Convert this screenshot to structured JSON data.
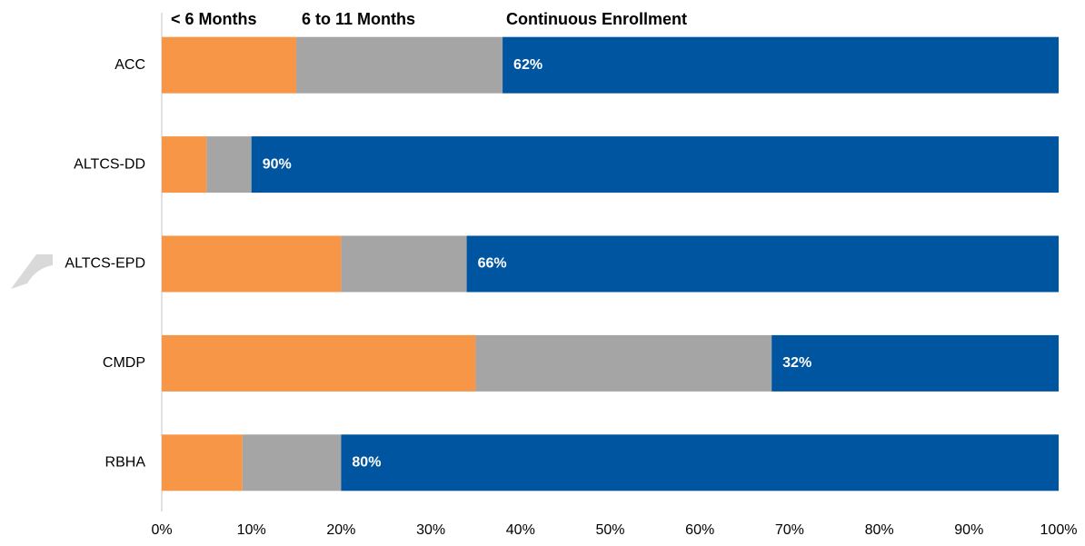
{
  "chart_data": {
    "type": "stacked-bar-horizontal",
    "categories": [
      "ACC",
      "ALTCS-DD",
      "ALTCS-EPD",
      "CMDP",
      "RBHA"
    ],
    "series": [
      {
        "name": "< 6 Months",
        "color": "#f79646",
        "values": [
          15,
          5,
          20,
          35,
          9
        ]
      },
      {
        "name": "6 to 11 Months",
        "color": "#a5a5a5",
        "values": [
          23,
          5,
          14,
          33,
          11
        ]
      },
      {
        "name": "Continuous Enrollment",
        "color": "#0055a0",
        "values": [
          62,
          90,
          66,
          32,
          80
        ],
        "value_labels": [
          "62%",
          "90%",
          "66%",
          "32%",
          "80%"
        ]
      }
    ],
    "xlim": [
      0,
      100
    ],
    "xticks": [
      {
        "value": 0,
        "label": "0%"
      },
      {
        "value": 10,
        "label": "10%"
      },
      {
        "value": 20,
        "label": "20%"
      },
      {
        "value": 30,
        "label": "30%"
      },
      {
        "value": 40,
        "label": "40%"
      },
      {
        "value": 50,
        "label": "50%"
      },
      {
        "value": 60,
        "label": "60%"
      },
      {
        "value": 70,
        "label": "70%"
      },
      {
        "value": 80,
        "label": "80%"
      },
      {
        "value": 90,
        "label": "90%"
      },
      {
        "value": 100,
        "label": "100%"
      }
    ],
    "grid": false,
    "legend": "top"
  }
}
